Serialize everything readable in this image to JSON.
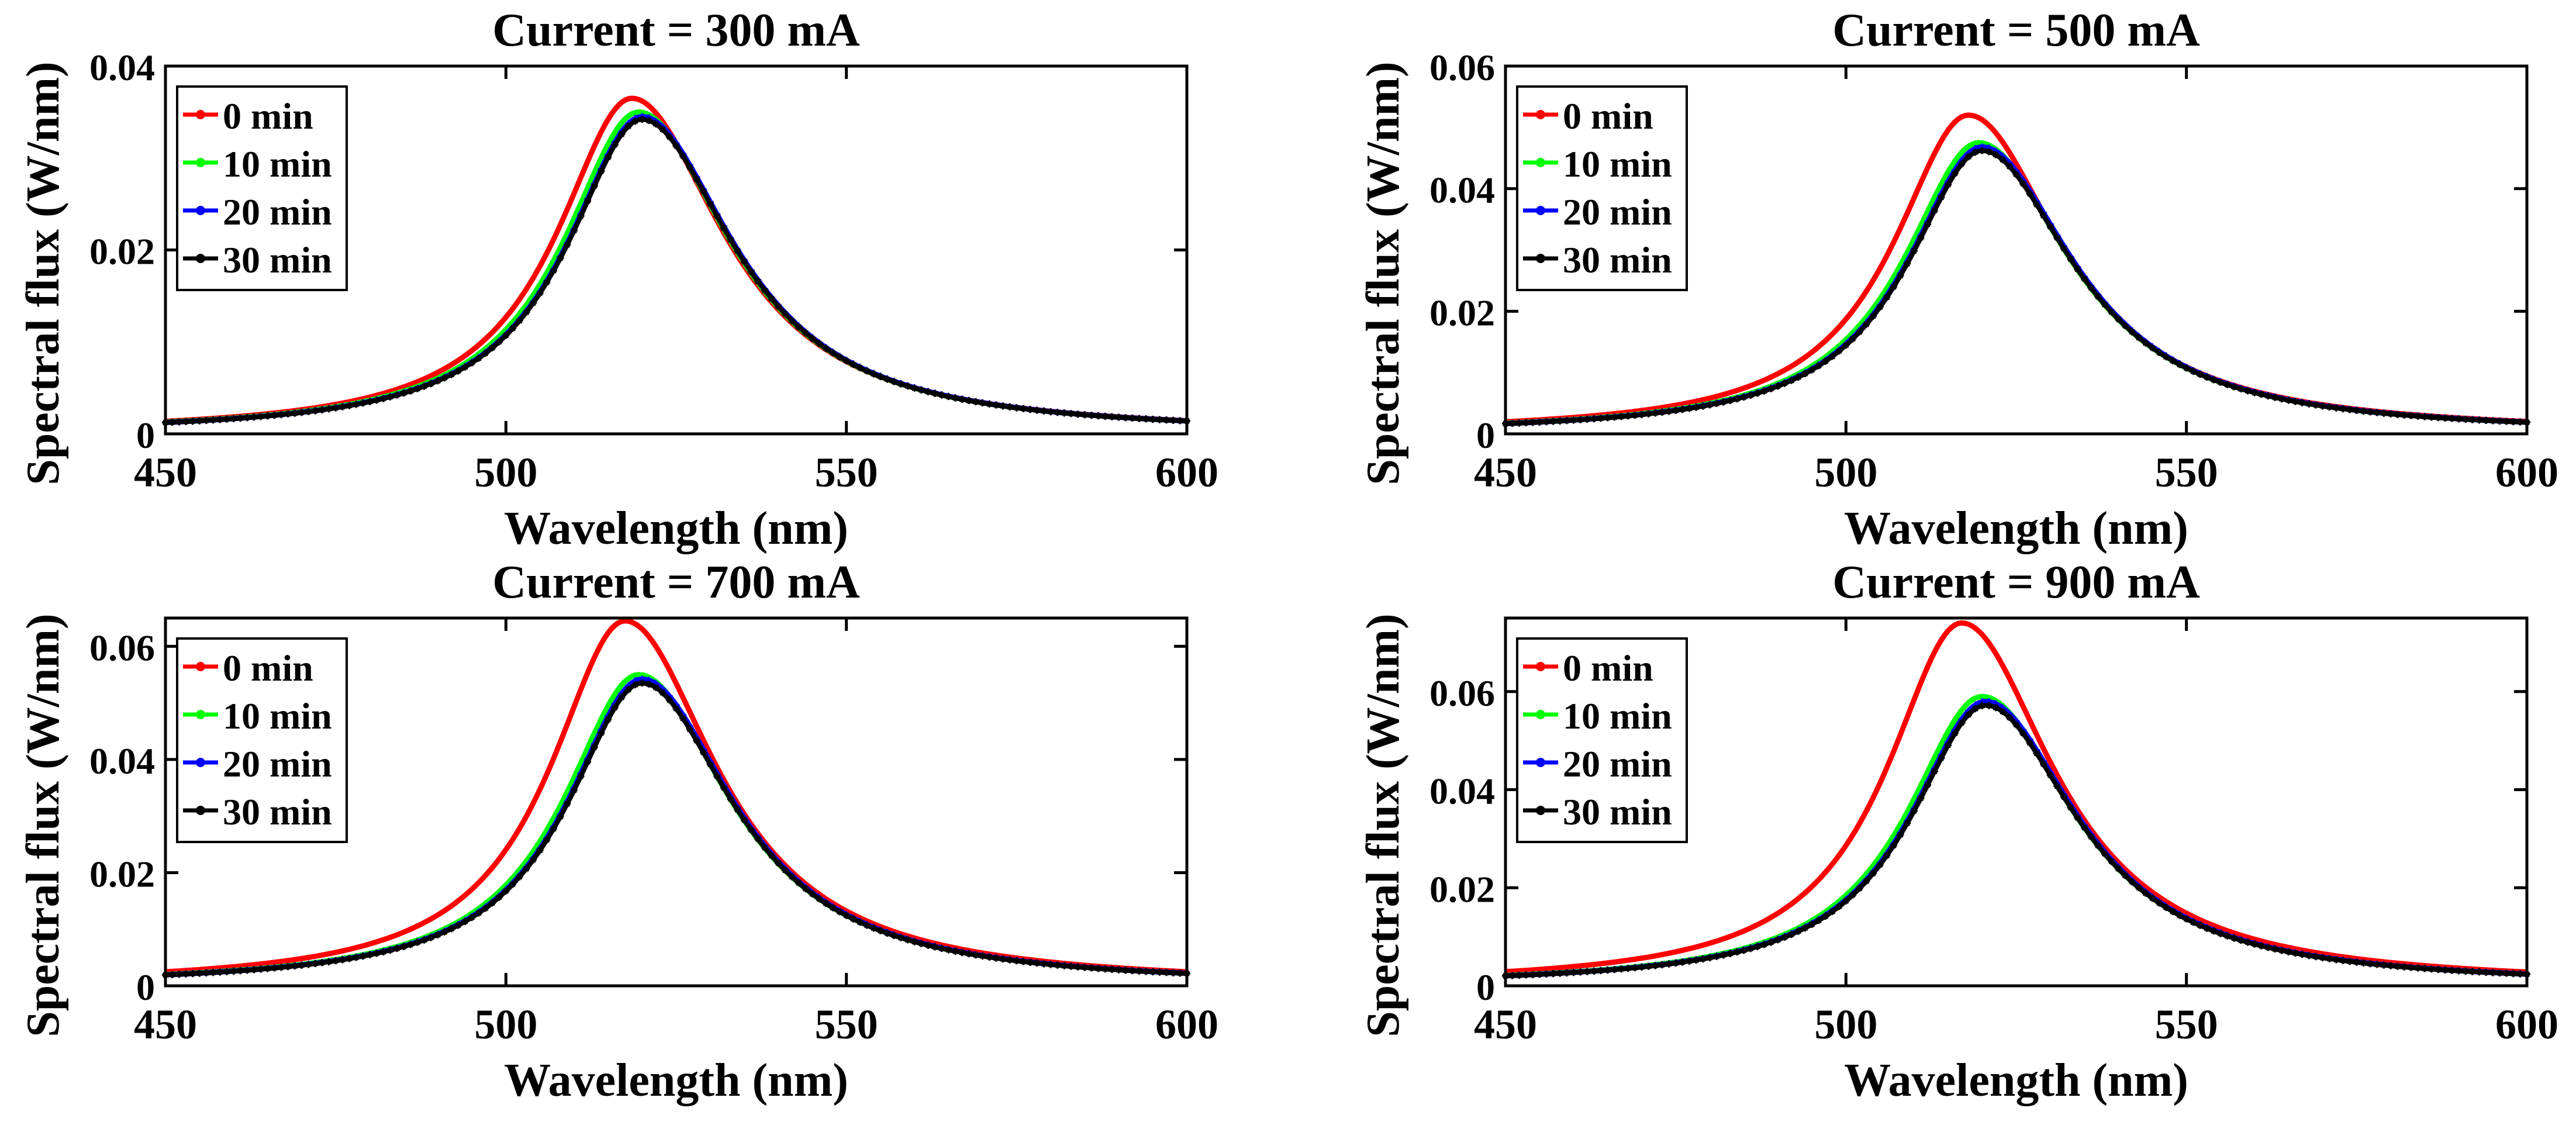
{
  "chart_data": [
    {
      "type": "line",
      "title": "Current = 300 mA",
      "xlabel": "Wavelength (nm)",
      "ylabel": "Spectral flux (W/nm)",
      "xlim": [
        450,
        600
      ],
      "ylim": [
        0,
        0.04
      ],
      "xticks": [
        450,
        500,
        550,
        600
      ],
      "yticks": [
        0,
        0.02,
        0.04
      ],
      "ytick_labels": [
        "0",
        "0.02",
        "0.04"
      ],
      "grid": false,
      "legend_position": "top-left",
      "series": [
        {
          "name": "0 min",
          "color": "#ff0000",
          "peak_nm": 518.5,
          "peak": 0.0365
        },
        {
          "name": "10 min",
          "color": "#00ff00",
          "peak_nm": 519.5,
          "peak": 0.035
        },
        {
          "name": "20 min",
          "color": "#0000ff",
          "peak_nm": 520.0,
          "peak": 0.0345
        },
        {
          "name": "30 min",
          "color": "#000000",
          "peak_nm": 520.0,
          "peak": 0.0342
        }
      ]
    },
    {
      "type": "line",
      "title": "Current = 500 mA",
      "xlabel": "Wavelength (nm)",
      "ylabel": "Spectral flux (W/nm)",
      "xlim": [
        450,
        600
      ],
      "ylim": [
        0,
        0.06
      ],
      "xticks": [
        450,
        500,
        550,
        600
      ],
      "yticks": [
        0,
        0.02,
        0.04,
        0.06
      ],
      "ytick_labels": [
        "0",
        "0.02",
        "0.04",
        "0.06"
      ],
      "grid": false,
      "legend_position": "top-left",
      "series": [
        {
          "name": "0 min",
          "color": "#ff0000",
          "peak_nm": 518.0,
          "peak": 0.052
        },
        {
          "name": "10 min",
          "color": "#00ff00",
          "peak_nm": 519.5,
          "peak": 0.0475
        },
        {
          "name": "20 min",
          "color": "#0000ff",
          "peak_nm": 520.0,
          "peak": 0.0468
        },
        {
          "name": "30 min",
          "color": "#000000",
          "peak_nm": 520.0,
          "peak": 0.0462
        }
      ]
    },
    {
      "type": "line",
      "title": "Current = 700 mA",
      "xlabel": "Wavelength (nm)",
      "ylabel": "Spectral flux (W/nm)",
      "xlim": [
        450,
        600
      ],
      "ylim": [
        0,
        0.065
      ],
      "xticks": [
        450,
        500,
        550,
        600
      ],
      "yticks": [
        0,
        0.02,
        0.04,
        0.06
      ],
      "ytick_labels": [
        "0",
        "0.02",
        "0.04",
        "0.06"
      ],
      "grid": false,
      "legend_position": "top-left",
      "series": [
        {
          "name": "0 min",
          "color": "#ff0000",
          "peak_nm": 517.5,
          "peak": 0.0645
        },
        {
          "name": "10 min",
          "color": "#00ff00",
          "peak_nm": 519.5,
          "peak": 0.055
        },
        {
          "name": "20 min",
          "color": "#0000ff",
          "peak_nm": 520.0,
          "peak": 0.0542
        },
        {
          "name": "30 min",
          "color": "#000000",
          "peak_nm": 520.0,
          "peak": 0.0535
        }
      ]
    },
    {
      "type": "line",
      "title": "Current = 900 mA",
      "xlabel": "Wavelength (nm)",
      "ylabel": "Spectral flux (W/nm)",
      "xlim": [
        450,
        600
      ],
      "ylim": [
        0,
        0.075
      ],
      "xticks": [
        450,
        500,
        550,
        600
      ],
      "yticks": [
        0,
        0.02,
        0.04,
        0.06
      ],
      "ytick_labels": [
        "0",
        "0.02",
        "0.04",
        "0.06"
      ],
      "grid": false,
      "legend_position": "top-left",
      "series": [
        {
          "name": "0 min",
          "color": "#ff0000",
          "peak_nm": 517.0,
          "peak": 0.074
        },
        {
          "name": "10 min",
          "color": "#00ff00",
          "peak_nm": 520.0,
          "peak": 0.059
        },
        {
          "name": "20 min",
          "color": "#0000ff",
          "peak_nm": 520.5,
          "peak": 0.058
        },
        {
          "name": "30 min",
          "color": "#000000",
          "peak_nm": 520.5,
          "peak": 0.0572
        }
      ]
    }
  ]
}
